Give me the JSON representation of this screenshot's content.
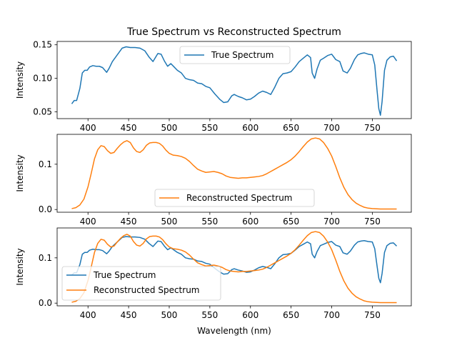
{
  "chart_data": {
    "title": "True Spectrum vs Reconstructed Spectrum",
    "colors": {
      "true": "#1f77b4",
      "reconstructed": "#ff7f0e"
    },
    "subplots": [
      {
        "type": "line",
        "xlim": [
          362,
          798
        ],
        "ylim": [
          0.04,
          0.155
        ],
        "xticks": [
          400,
          450,
          500,
          550,
          600,
          650,
          700,
          750
        ],
        "yticks": [
          0.05,
          0.1,
          0.15
        ],
        "ytick_labels": [
          "0.05",
          "0.10",
          "0.15"
        ],
        "ylabel": "Intensity",
        "xlabel": "",
        "grid": false,
        "legend": "upper-center",
        "series": [
          "true"
        ]
      },
      {
        "type": "line",
        "xlim": [
          362,
          798
        ],
        "ylim": [
          -0.006,
          0.166
        ],
        "xticks": [
          400,
          450,
          500,
          550,
          600,
          650,
          700,
          750
        ],
        "yticks": [
          0.0,
          0.1
        ],
        "ytick_labels": [
          "0.0",
          "0.1"
        ],
        "ylabel": "Intensity",
        "xlabel": "",
        "grid": false,
        "legend": "lower-center",
        "series": [
          "reconstructed"
        ]
      },
      {
        "type": "line",
        "xlim": [
          362,
          798
        ],
        "ylim": [
          -0.006,
          0.166
        ],
        "xticks": [
          400,
          450,
          500,
          550,
          600,
          650,
          700,
          750
        ],
        "yticks": [
          0.0,
          0.1
        ],
        "ytick_labels": [
          "0.0",
          "0.1"
        ],
        "ylabel": "Intensity",
        "xlabel": "Wavelength (nm)",
        "grid": false,
        "legend": "lower-left",
        "series": [
          "true",
          "reconstructed"
        ]
      }
    ],
    "series": {
      "true": {
        "name": "True Spectrum",
        "x": [
          380,
          383,
          386,
          390,
          393,
          396,
          399,
          402,
          406,
          410,
          414,
          418,
          423,
          426,
          430,
          436,
          442,
          447,
          452,
          458,
          464,
          470,
          475,
          480,
          486,
          490,
          494,
          498,
          502,
          506,
          510,
          515,
          520,
          525,
          530,
          535,
          540,
          545,
          550,
          556,
          562,
          567,
          572,
          577,
          580,
          585,
          590,
          595,
          600,
          605,
          610,
          615,
          620,
          625,
          630,
          635,
          640,
          645,
          650,
          655,
          660,
          665,
          670,
          674,
          676,
          679,
          682,
          686,
          690,
          695,
          700,
          705,
          710,
          714,
          719,
          723,
          728,
          732,
          736,
          740,
          745,
          750,
          753,
          756,
          758,
          760,
          762,
          765,
          768,
          772,
          776,
          780
        ],
        "y": [
          0.062,
          0.067,
          0.067,
          0.085,
          0.108,
          0.112,
          0.112,
          0.117,
          0.119,
          0.118,
          0.118,
          0.116,
          0.109,
          0.115,
          0.125,
          0.135,
          0.145,
          0.147,
          0.146,
          0.146,
          0.145,
          0.141,
          0.132,
          0.125,
          0.137,
          0.136,
          0.126,
          0.118,
          0.122,
          0.117,
          0.112,
          0.108,
          0.1,
          0.098,
          0.097,
          0.093,
          0.092,
          0.088,
          0.086,
          0.077,
          0.069,
          0.064,
          0.065,
          0.074,
          0.076,
          0.073,
          0.071,
          0.068,
          0.069,
          0.073,
          0.078,
          0.081,
          0.079,
          0.076,
          0.087,
          0.1,
          0.107,
          0.108,
          0.11,
          0.117,
          0.125,
          0.13,
          0.135,
          0.131,
          0.108,
          0.1,
          0.114,
          0.127,
          0.13,
          0.134,
          0.136,
          0.128,
          0.125,
          0.111,
          0.108,
          0.115,
          0.128,
          0.135,
          0.137,
          0.138,
          0.136,
          0.135,
          0.12,
          0.08,
          0.055,
          0.045,
          0.065,
          0.112,
          0.127,
          0.132,
          0.133,
          0.126
        ]
      },
      "reconstructed": {
        "name": "Reconstructed Spectrum",
        "x": [
          380,
          385,
          390,
          395,
          400,
          404,
          408,
          412,
          416,
          420,
          424,
          428,
          432,
          436,
          440,
          444,
          448,
          452,
          456,
          460,
          464,
          468,
          472,
          476,
          480,
          484,
          488,
          492,
          496,
          500,
          505,
          510,
          515,
          520,
          525,
          530,
          535,
          540,
          545,
          550,
          555,
          560,
          565,
          570,
          575,
          580,
          585,
          590,
          595,
          600,
          605,
          610,
          615,
          620,
          625,
          630,
          635,
          640,
          645,
          650,
          655,
          660,
          665,
          670,
          675,
          680,
          685,
          690,
          695,
          700,
          705,
          710,
          715,
          720,
          725,
          730,
          735,
          740,
          745,
          750,
          760,
          770,
          780
        ],
        "y": [
          0.002,
          0.004,
          0.01,
          0.023,
          0.05,
          0.08,
          0.112,
          0.132,
          0.141,
          0.139,
          0.13,
          0.124,
          0.126,
          0.135,
          0.143,
          0.149,
          0.152,
          0.148,
          0.136,
          0.128,
          0.126,
          0.132,
          0.142,
          0.147,
          0.148,
          0.148,
          0.146,
          0.14,
          0.131,
          0.124,
          0.12,
          0.119,
          0.117,
          0.113,
          0.106,
          0.097,
          0.089,
          0.085,
          0.082,
          0.083,
          0.084,
          0.082,
          0.079,
          0.074,
          0.071,
          0.07,
          0.069,
          0.07,
          0.07,
          0.071,
          0.072,
          0.073,
          0.075,
          0.079,
          0.084,
          0.089,
          0.094,
          0.099,
          0.104,
          0.11,
          0.118,
          0.128,
          0.139,
          0.149,
          0.156,
          0.158,
          0.156,
          0.148,
          0.135,
          0.118,
          0.095,
          0.07,
          0.049,
          0.033,
          0.022,
          0.014,
          0.009,
          0.005,
          0.003,
          0.002,
          0.001,
          0.001,
          0.001
        ]
      }
    }
  }
}
